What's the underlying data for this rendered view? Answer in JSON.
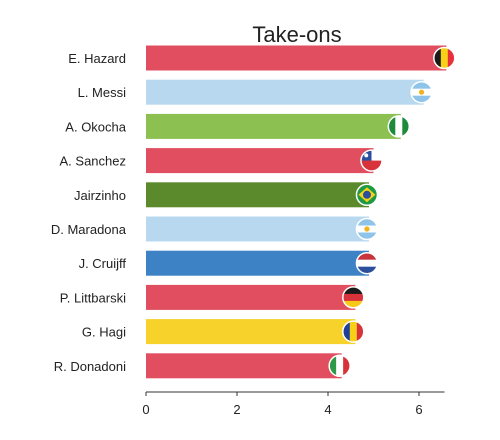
{
  "chart_data": {
    "type": "bar",
    "orientation": "horizontal",
    "title": "Take-ons",
    "xlabel": "",
    "ylabel": "",
    "xlim": [
      0,
      7
    ],
    "xticks": [
      "0",
      "2",
      "4",
      "6"
    ],
    "grid": false,
    "categories": [
      "E. Hazard",
      "L. Messi",
      "A. Okocha",
      "A. Sanchez",
      "Jairzinho",
      "D. Maradona",
      "J. Cruijff",
      "P. Littbarski",
      "G. Hagi",
      "R. Donadoni"
    ],
    "values": [
      6.6,
      6.1,
      5.6,
      5.0,
      4.9,
      4.9,
      4.9,
      4.6,
      4.6,
      4.3
    ],
    "bar_colors": [
      "#E04E5F",
      "#B8D8F0",
      "#8CC152",
      "#E04E5F",
      "#5B8A2C",
      "#B8D8F0",
      "#3C82C4",
      "#E04E5F",
      "#F6D22A",
      "#E04E5F"
    ],
    "flags": [
      "belgium-flag-icon",
      "argentina-flag-icon",
      "nigeria-flag-icon",
      "chile-flag-icon",
      "brazil-flag-icon",
      "argentina-flag-icon",
      "netherlands-flag-icon",
      "germany-flag-icon",
      "romania-flag-icon",
      "italy-flag-icon"
    ]
  }
}
